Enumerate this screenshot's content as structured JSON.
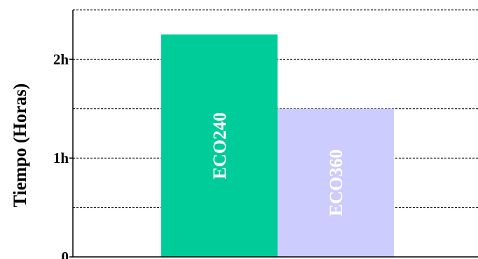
{
  "chart_data": {
    "type": "bar",
    "orientation": "vertical",
    "title": "",
    "xlabel": "",
    "ylabel": "Tiempo (Horas)",
    "categories": [
      "ECO240",
      "ECO360"
    ],
    "values": [
      2.25,
      1.5
    ],
    "unit": "hours",
    "ylim": [
      0,
      2.5
    ],
    "yticks": [
      {
        "value": 0,
        "label": "0"
      },
      {
        "value": 1,
        "label": "1h"
      },
      {
        "value": 2,
        "label": "2h"
      }
    ],
    "gridlines": [
      0.5,
      1,
      1.5,
      2,
      2.5
    ],
    "grid": true,
    "grid_style": "dashed",
    "legend": "none",
    "bar_labels_inside_vertical": true,
    "colors": [
      "#00cc99",
      "#ccccff"
    ]
  }
}
